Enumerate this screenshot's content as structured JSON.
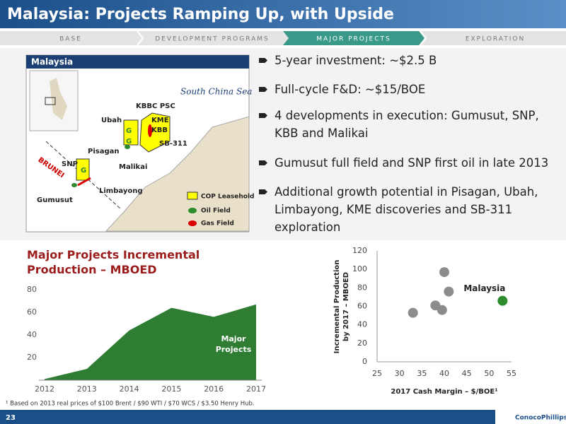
{
  "header": {
    "title": "Malaysia: Projects Ramping Up, with Upside",
    "tabs": [
      "BASE",
      "DEVELOPMENT PROGRAMS",
      "MAJOR PROJECTS",
      "EXPLORATION"
    ],
    "active_tab": 2
  },
  "map": {
    "title": "Malaysia",
    "sea": "South China Sea",
    "labels": {
      "kbbc": "KBBC PSC",
      "ubah": "Ubah",
      "kme": "KME",
      "kbb": "KBB",
      "sb311": "SB-311",
      "pisagan": "Pisagan",
      "malikai": "Malikai",
      "snp": "SNP",
      "brunei": "BRUNEI",
      "gumusut": "Gumusut",
      "limbayong": "Limbayong",
      "g": "G"
    },
    "legend": [
      "COP Leasehold",
      "Oil Field",
      "Gas Field"
    ]
  },
  "bullets": [
    "5-year investment: ~$2.5 B",
    "Full-cycle F&D: ~$15/BOE",
    "4 developments in execution: Gumusut, SNP, KBB and Malikai",
    "Gumusut full field and SNP first oil in late 2013",
    "Additional growth potential in Pisagan, Ubah, Limbayong, KME discoveries and SB-311 exploration"
  ],
  "area_chart": {
    "type": "area",
    "title": "Major Projects Incremental Production – MBOED",
    "categories": [
      "2012",
      "2013",
      "2014",
      "2015",
      "2016",
      "2017"
    ],
    "values": [
      1,
      10,
      44,
      64,
      56,
      67
    ],
    "color": "#2e7d32",
    "ylim": [
      0,
      85
    ],
    "yticks": [
      20,
      40,
      60,
      80
    ],
    "annotation": "Major Projects"
  },
  "scatter_chart": {
    "type": "scatter",
    "x_label": "2017 Cash Margin – $/BOE¹",
    "y_label": [
      "Incremental Production",
      "by 2017 – MBOED"
    ],
    "xlim": [
      25,
      55
    ],
    "ylim": [
      0,
      120
    ],
    "xticks": [
      25,
      30,
      35,
      40,
      45,
      50,
      55
    ],
    "yticks": [
      0,
      20,
      40,
      60,
      80,
      100,
      120
    ],
    "series": [
      {
        "color": "#8c8c8c",
        "x": [
          33,
          38,
          39.5,
          40,
          41
        ],
        "values": [
          53,
          61,
          56,
          97,
          76
        ]
      },
      {
        "name": "Malaysia",
        "color": "#2e8b2e",
        "x": [
          53
        ],
        "values": [
          66
        ]
      }
    ]
  },
  "footer": {
    "footnote": "¹ Based on 2013 real prices of $100 Brent / $90 WTI / $70 WCS / $3.50 Henry Hub.",
    "page": "23",
    "logo": "ConocoPhillips"
  }
}
